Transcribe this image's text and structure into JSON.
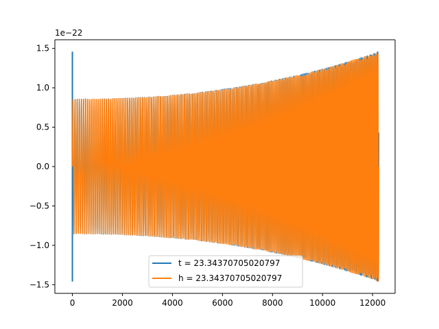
{
  "chart_data": {
    "type": "line",
    "title": "",
    "xlabel": "",
    "ylabel": "",
    "y_offset_label": "1e−22",
    "xlim": [
      -700,
      12900
    ],
    "ylim": [
      -1.61,
      1.61
    ],
    "x_ticks": [
      0,
      2000,
      4000,
      6000,
      8000,
      10000,
      12000
    ],
    "x_tick_labels": [
      "0",
      "2000",
      "4000",
      "6000",
      "8000",
      "10000",
      "12000"
    ],
    "y_ticks": [
      -1.5,
      -1.0,
      -0.5,
      0.0,
      0.5,
      1.0,
      1.5
    ],
    "y_tick_labels": [
      "−1.5",
      "−1.0",
      "−0.5",
      "0.0",
      "0.5",
      "1.0",
      "1.5"
    ],
    "grid": false,
    "legend_position": "lower-center",
    "series": [
      {
        "name": "t = 23.34370705020797",
        "color": "#1f77b4",
        "x_start": 0,
        "x_end": 12250,
        "peak_amplitude": 1.46,
        "note_spikes_at": [
          0,
          12200
        ]
      },
      {
        "name": "h = 23.34370705020797",
        "color": "#ff7f0e",
        "x_start": 0,
        "x_end": 12250,
        "start_amplitude": 0.86,
        "end_amplitude": 1.46
      }
    ]
  }
}
